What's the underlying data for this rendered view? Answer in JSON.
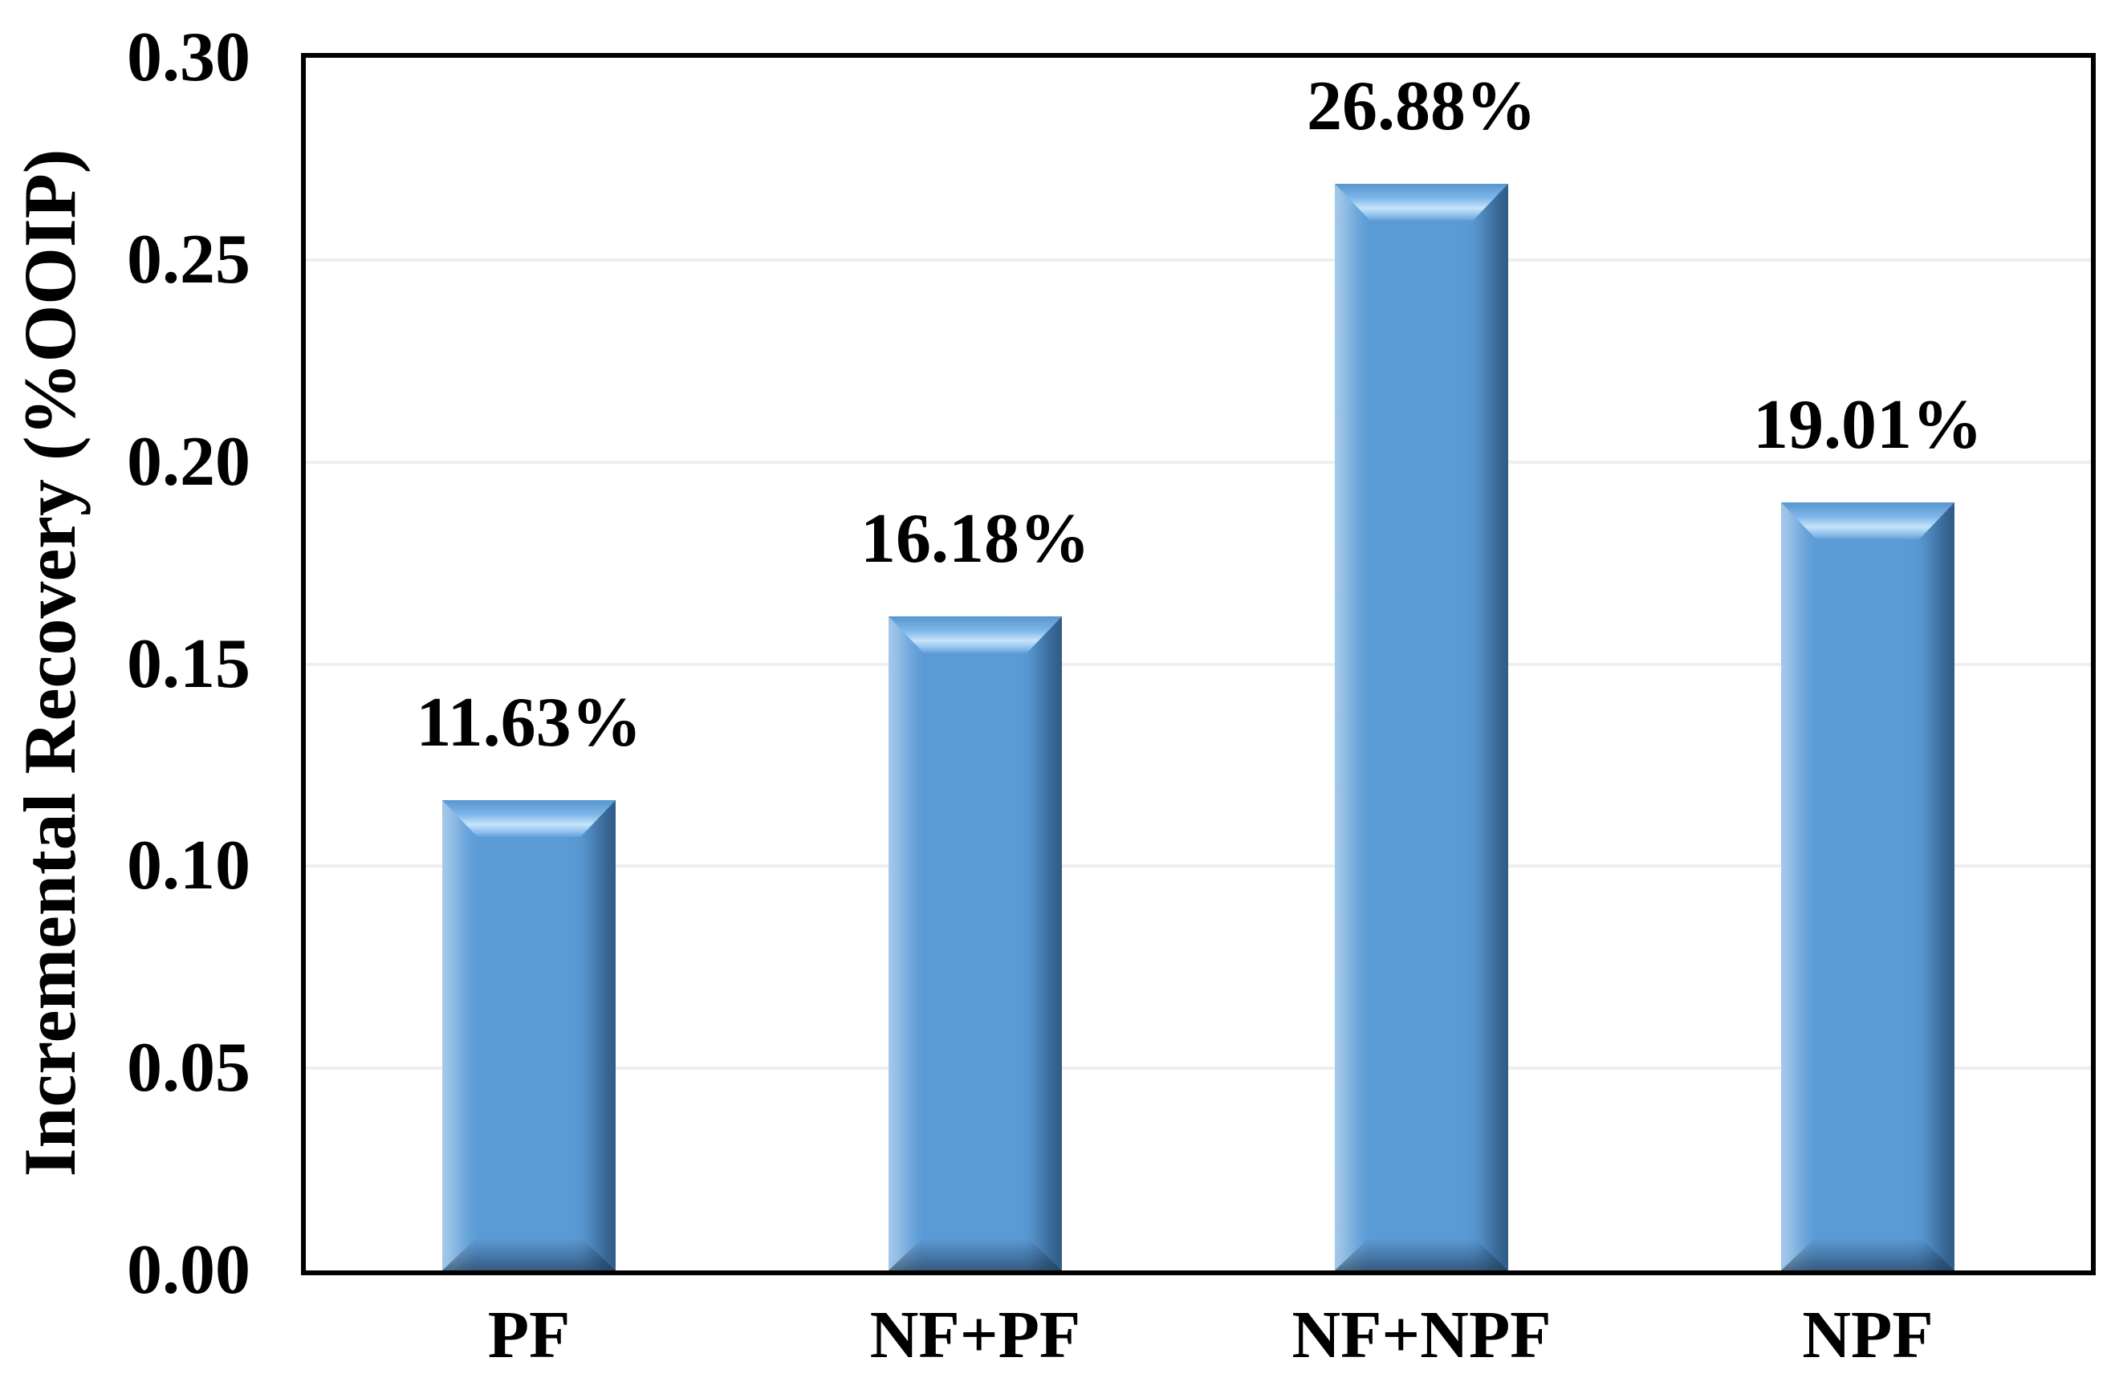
{
  "chart_data": {
    "type": "bar",
    "title": "",
    "ylabel": "Incremental Recovery (%OOIP)",
    "xlabel": "",
    "categories": [
      "PF",
      "NF+PF",
      "NF+NPF",
      "NPF"
    ],
    "values": [
      0.1163,
      0.1618,
      0.2688,
      0.1901
    ],
    "value_labels": [
      "11.63%",
      "16.18%",
      "26.88%",
      "19.01%"
    ],
    "ylim": [
      0,
      0.3
    ],
    "ytick_step": 0.05,
    "yticks": [
      "0.00",
      "0.05",
      "0.10",
      "0.15",
      "0.20",
      "0.25",
      "0.30"
    ],
    "grid": true,
    "legend": "none",
    "colors": {
      "bar_face": "#5B9BD5",
      "bar_highlight": "#C6E4FA",
      "bar_dark_edge": "#3A648C",
      "gridline": "#EFEFEF",
      "axis_box": "#000000",
      "text": "#000000",
      "background": "#FFFFFF"
    }
  }
}
